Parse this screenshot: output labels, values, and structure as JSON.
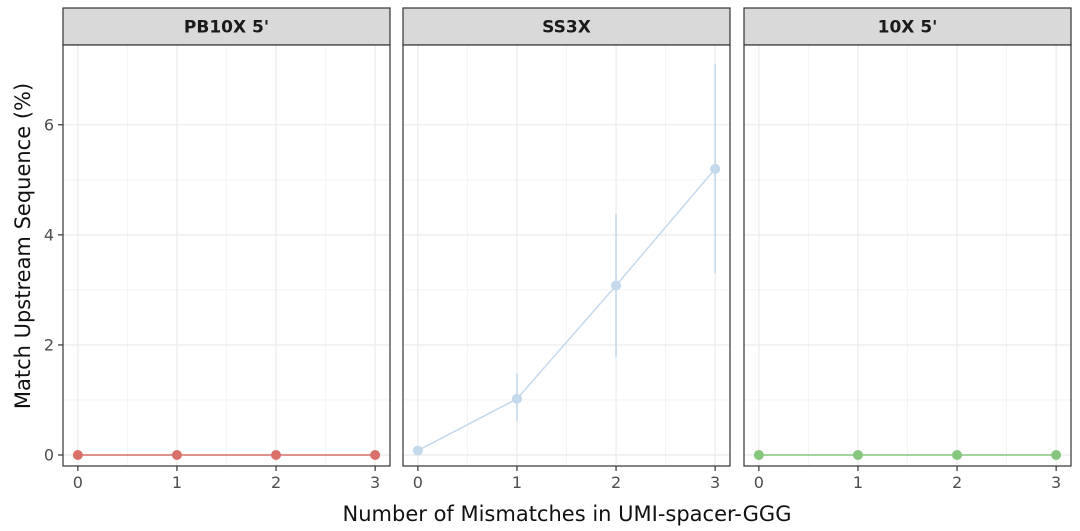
{
  "chart_data": {
    "type": "line",
    "xlabel": "Number of Mismatches in UMI-spacer-GGG",
    "ylabel": "Match Upstream Sequence (%)",
    "x": [
      0,
      1,
      2,
      3
    ],
    "xticks": [
      "0",
      "1",
      "2",
      "3"
    ],
    "yticks": [
      "0",
      "2",
      "4",
      "6"
    ],
    "xlim": [
      -0.15,
      3.15
    ],
    "ylim": [
      -0.2,
      7.45
    ],
    "grid": true,
    "facets": [
      {
        "label": "PB10X 5'",
        "color": "#d9706a",
        "values": [
          0,
          0,
          0,
          0
        ],
        "error_low": [
          0,
          0,
          0,
          0
        ],
        "error_high": [
          0,
          0,
          0,
          0
        ]
      },
      {
        "label": "SS3X",
        "color": "#c5d9ec",
        "values": [
          0.08,
          1.02,
          3.08,
          5.2
        ],
        "error_low": [
          0.05,
          0.62,
          1.78,
          3.3
        ],
        "error_high": [
          0.12,
          1.48,
          4.38,
          7.1
        ]
      },
      {
        "label": "10X 5'",
        "color": "#86c77e",
        "values": [
          0,
          0,
          0,
          0
        ],
        "error_low": [
          0,
          0,
          0,
          0
        ],
        "error_high": [
          0,
          0,
          0,
          0
        ]
      }
    ]
  }
}
